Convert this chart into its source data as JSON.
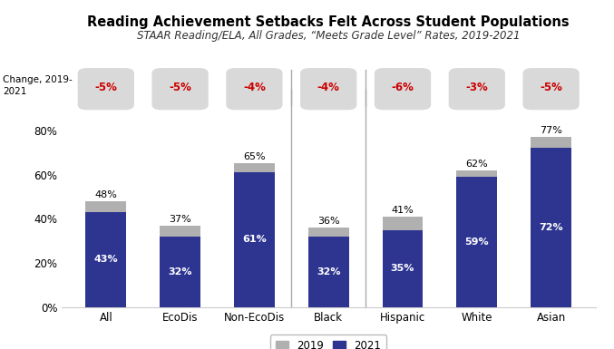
{
  "title": "Reading Achievement Setbacks Felt Across Student Populations",
  "subtitle": "STAAR Reading/ELA, All Grades, “Meets Grade Level” Rates, 2019-2021",
  "categories": [
    "All",
    "EcoDis",
    "Non-EcoDis",
    "Black",
    "Hispanic",
    "White",
    "Asian"
  ],
  "values_2019": [
    48,
    37,
    65,
    36,
    41,
    62,
    77
  ],
  "values_2021": [
    43,
    32,
    61,
    32,
    35,
    59,
    72
  ],
  "changes": [
    "-5%",
    "-5%",
    "-4%",
    "-4%",
    "-6%",
    "-3%",
    "-5%"
  ],
  "color_2019": "#b0b0b0",
  "color_2021": "#2e3591",
  "change_bg": "#d9d9d9",
  "change_text_color": "#cc0000",
  "ylim": [
    0,
    90
  ],
  "background_color": "#ffffff"
}
